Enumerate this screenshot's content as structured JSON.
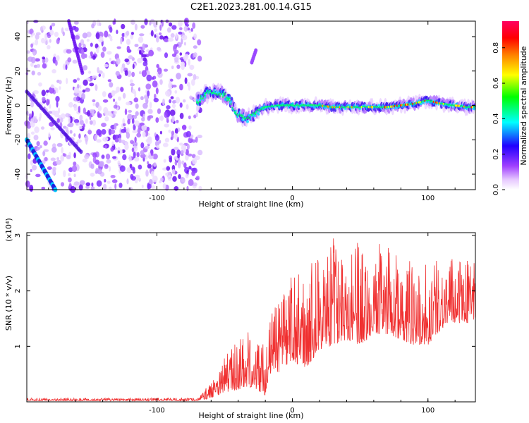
{
  "title": "C2E1.2023.281.00.14.G15",
  "chart_data": [
    {
      "type": "heatmap",
      "xlabel": "Height of straight line (km)",
      "ylabel": "Frequency (Hz)",
      "xlim": [
        -196,
        135
      ],
      "ylim": [
        -49,
        49
      ],
      "xticks": [
        -100,
        0,
        100
      ],
      "yticks": [
        -40,
        -20,
        0,
        20,
        40
      ],
      "colorbar": {
        "label": "Normalized spectral amplitude",
        "range": [
          0,
          0.95
        ],
        "ticks": [
          0.0,
          0.2,
          0.4,
          0.6,
          0.8
        ],
        "tick_labels": [
          "0.0",
          "0.2",
          "0.4",
          "0.6",
          "0.8"
        ],
        "colormap": [
          "#ffffff",
          "#e6c8ff",
          "#a040ff",
          "#2000ff",
          "#00ffff",
          "#00ff00",
          "#ffff00",
          "#ff8000",
          "#ff0000",
          "#ff0060"
        ]
      },
      "trace": {
        "x": [
          -70,
          -65,
          -60,
          -55,
          -50,
          -45,
          -42,
          -38,
          -34,
          -30,
          -25,
          -20,
          -10,
          0,
          10,
          20,
          30,
          40,
          50,
          60,
          70,
          80,
          90,
          95,
          100,
          105,
          110,
          120,
          130,
          135
        ],
        "y": [
          2,
          6,
          8,
          7,
          6,
          2,
          -4,
          -6,
          -8,
          -6,
          -3,
          -1,
          0,
          0,
          0,
          0,
          -1,
          -1,
          -1,
          -1,
          -1,
          0,
          1,
          2,
          3,
          2,
          1,
          0,
          -1,
          -1
        ]
      },
      "noise_region_x": [
        -196,
        -68
      ],
      "diagonal_line": {
        "x": [
          -196,
          -175
        ],
        "y": [
          -20,
          -49
        ]
      },
      "isolated_feature": {
        "x": [
          -30,
          -27
        ],
        "y": [
          25,
          32
        ]
      }
    },
    {
      "type": "line",
      "xlabel": "Height of straight line (km)",
      "ylabel": "SNR (10 * v/v)",
      "multiplier_label": "(x10⁴)",
      "xlim": [
        -196,
        135
      ],
      "ylim": [
        0,
        3.05
      ],
      "xticks": [
        -100,
        0,
        100
      ],
      "yticks": [
        1,
        2,
        3
      ],
      "color": "#f03030",
      "envelope": {
        "x": [
          -196,
          -70,
          -60,
          -50,
          -40,
          -30,
          -20,
          -15,
          -10,
          0,
          10,
          20,
          30,
          40,
          50,
          60,
          70,
          80,
          90,
          100,
          110,
          120,
          135
        ],
        "low": [
          0.0,
          0.0,
          0.05,
          0.15,
          0.2,
          0.25,
          0.1,
          0.6,
          0.5,
          0.7,
          0.6,
          0.9,
          1.0,
          1.1,
          1.0,
          1.2,
          1.2,
          1.1,
          1.0,
          1.0,
          1.3,
          1.4,
          1.4
        ],
        "high": [
          0.05,
          0.05,
          0.35,
          0.8,
          1.1,
          1.3,
          1.0,
          1.6,
          1.8,
          2.3,
          2.4,
          2.6,
          3.0,
          2.8,
          2.9,
          2.9,
          2.8,
          2.6,
          2.5,
          2.6,
          2.5,
          2.6,
          2.6
        ]
      }
    }
  ]
}
